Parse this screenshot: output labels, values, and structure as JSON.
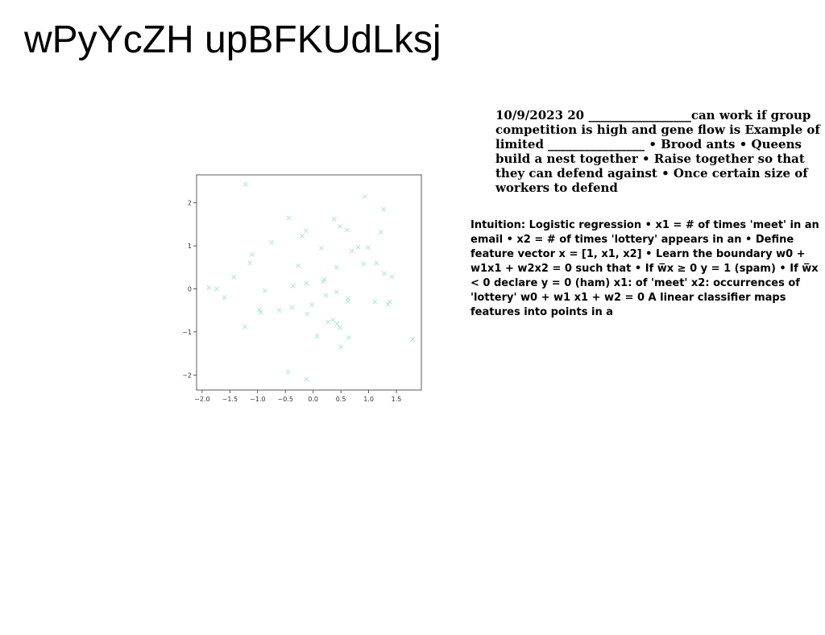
{
  "page": {
    "title": "wPyYcZH upBFKUdLksj"
  },
  "text_blocks": [
    "10/9/2023 20 _________________can work if group competition is high and gene flow is Example of limited ________________ • Brood ants • Queens build a nest together • Raise together so that they can defend against • Once certain size of workers to defend",
    "Intuition: Logistic regression • x1 = # of times 'meet' in an email • x2 = # of times 'lottery' appears in an • Define feature vector x = [1, x1, x2] • Learn the boundary w0 + w1x1 + w2x2 = 0 such that • If w̅x ≥ 0 y = 1 (spam) • If w̅x < 0 declare y = 0 (ham) x1: of 'meet' x2: occurrences of 'lottery' w0 + w1 x1 + w2 = 0 A linear classifier maps features into points in a"
  ],
  "chart_data": {
    "type": "scatter",
    "title": "",
    "xlabel": "",
    "ylabel": "",
    "xlim": [
      -2.1,
      1.95
    ],
    "ylim": [
      -2.35,
      2.65
    ],
    "xticks": [
      -2.0,
      -1.5,
      -1.0,
      -0.5,
      0.0,
      0.5,
      1.0,
      1.5
    ],
    "xtick_labels": [
      "−2.0",
      "−1.5",
      "−1.0",
      "−0.5",
      "0.0",
      "0.5",
      "1.0",
      "1.5"
    ],
    "yticks": [
      -2,
      -1,
      0,
      1,
      2
    ],
    "ytick_labels": [
      "−2",
      "−1",
      "0",
      "1",
      "2"
    ],
    "grid": false,
    "marker": "x",
    "marker_color": "#aee8d2",
    "series": [
      {
        "x": [
          -1.22,
          0.93,
          1.27,
          -0.44,
          0.38,
          0.48,
          -0.13,
          0.61,
          -0.2,
          1.22,
          -0.75,
          0.15,
          0.7,
          0.81,
          0.99,
          -1.1,
          1.14,
          -0.27,
          0.42,
          1.28,
          -1.43,
          -1.14,
          0.91,
          1.42,
          0.2,
          -0.12,
          -0.36,
          0.23,
          -0.87,
          -1.88,
          -1.74,
          0.42,
          -1.6,
          0.18,
          0.63,
          1.11,
          0.62,
          1.38,
          -0.02,
          -0.61,
          -0.38,
          1.35,
          -0.97,
          -0.94,
          -0.11,
          0.27,
          0.43,
          0.35,
          0.48,
          -1.23,
          0.07,
          0.64,
          1.79,
          0.5,
          -0.45,
          -0.12
        ],
        "y": [
          2.43,
          2.15,
          1.85,
          1.65,
          1.62,
          1.45,
          1.35,
          1.37,
          1.23,
          1.32,
          1.08,
          0.95,
          0.88,
          0.97,
          0.96,
          0.8,
          0.6,
          0.54,
          0.5,
          0.36,
          0.27,
          0.6,
          0.58,
          0.28,
          0.22,
          0.13,
          0.07,
          -0.15,
          -0.04,
          0.03,
          0.0,
          -0.07,
          -0.2,
          0.17,
          -0.22,
          -0.3,
          -0.29,
          -0.3,
          -0.37,
          -0.5,
          -0.43,
          -0.36,
          -0.48,
          -0.55,
          -0.58,
          -0.77,
          -0.81,
          -0.72,
          -0.9,
          -0.88,
          -1.1,
          -1.13,
          -1.17,
          -1.35,
          -1.93,
          -2.1
        ]
      }
    ]
  }
}
